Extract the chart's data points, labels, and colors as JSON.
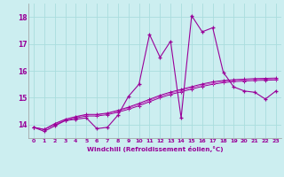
{
  "xlabel": "Windchill (Refroidissement éolien,°C)",
  "xlim": [
    -0.5,
    23.5
  ],
  "ylim": [
    13.5,
    18.5
  ],
  "yticks": [
    14,
    15,
    16,
    17,
    18
  ],
  "xticks": [
    0,
    1,
    2,
    3,
    4,
    5,
    6,
    7,
    8,
    9,
    10,
    11,
    12,
    13,
    14,
    15,
    16,
    17,
    18,
    19,
    20,
    21,
    22,
    23
  ],
  "bg_color": "#cceef0",
  "grid_color": "#aadddd",
  "line_color_dark": "#990099",
  "line_color_light": "#cc55cc",
  "curve_volatile": [
    13.9,
    13.75,
    13.95,
    14.15,
    14.2,
    14.25,
    13.85,
    13.9,
    14.35,
    15.05,
    15.5,
    17.35,
    16.5,
    17.1,
    14.25,
    18.05,
    17.45,
    17.6,
    15.95,
    15.4,
    15.25,
    15.2,
    14.95,
    15.25
  ],
  "curve_smooth1": [
    13.9,
    13.82,
    14.0,
    14.15,
    14.25,
    14.32,
    14.32,
    14.37,
    14.46,
    14.57,
    14.7,
    14.85,
    15.0,
    15.12,
    15.22,
    15.32,
    15.42,
    15.5,
    15.56,
    15.6,
    15.62,
    15.64,
    15.65,
    15.66
  ],
  "curve_smooth2": [
    13.9,
    13.82,
    14.02,
    14.18,
    14.28,
    14.36,
    14.36,
    14.41,
    14.5,
    14.62,
    14.75,
    14.9,
    15.05,
    15.17,
    15.27,
    15.37,
    15.47,
    15.55,
    15.6,
    15.64,
    15.66,
    15.68,
    15.69,
    15.7
  ],
  "curve_smooth3": [
    13.9,
    13.82,
    14.04,
    14.2,
    14.3,
    14.38,
    14.38,
    14.43,
    14.53,
    14.65,
    14.79,
    14.94,
    15.09,
    15.21,
    15.31,
    15.41,
    15.51,
    15.59,
    15.64,
    15.67,
    15.69,
    15.71,
    15.72,
    15.73
  ]
}
